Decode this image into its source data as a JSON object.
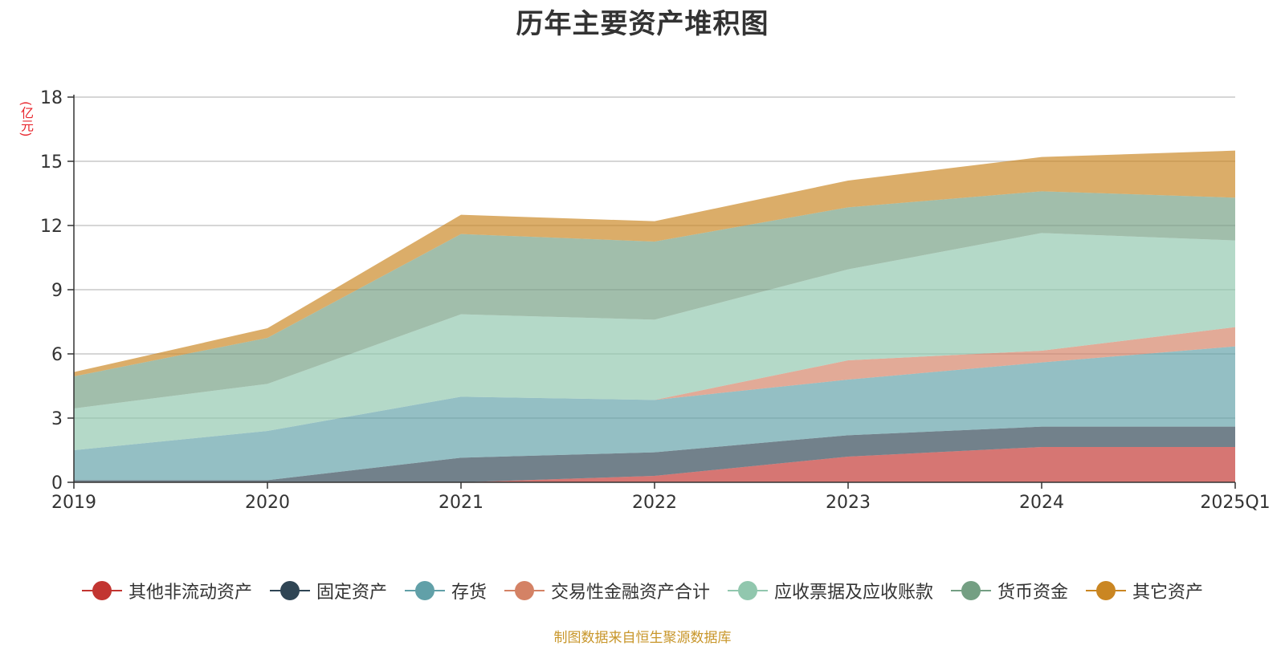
{
  "chart_data": {
    "type": "area",
    "stacked": true,
    "title": "历年主要资产堆积图",
    "y_unit": "(亿元)",
    "categories": [
      "2019",
      "2020",
      "2021",
      "2022",
      "2023",
      "2024",
      "2025Q1"
    ],
    "ylim": [
      0,
      18
    ],
    "yticks": [
      "0",
      "3",
      "6",
      "9",
      "12",
      "15",
      "18"
    ],
    "grid": true,
    "legend_position": "bottom",
    "series": [
      {
        "name": "其他非流动资产",
        "color": "#c23531",
        "values": [
          0,
          0,
          0,
          0.3,
          1.2,
          1.65,
          1.65
        ]
      },
      {
        "name": "固定资产",
        "color": "#2f4554",
        "values": [
          0.1,
          0.1,
          1.15,
          1.1,
          1.0,
          0.95,
          0.95
        ]
      },
      {
        "name": "存货",
        "color": "#61a0a8",
        "values": [
          1.4,
          2.3,
          2.85,
          2.45,
          2.6,
          3.0,
          3.75
        ]
      },
      {
        "name": "交易性金融资产合计",
        "color": "#d48265",
        "values": [
          0,
          0,
          0,
          0,
          0.9,
          0.55,
          0.9
        ]
      },
      {
        "name": "应收票据及应收账款",
        "color": "#91c7ae",
        "values": [
          1.95,
          2.2,
          3.85,
          3.75,
          4.25,
          5.5,
          4.05
        ]
      },
      {
        "name": "货币资金",
        "color": "#749f83",
        "values": [
          1.5,
          2.15,
          3.75,
          3.65,
          2.9,
          1.95,
          2.0
        ]
      },
      {
        "name": "其它资产",
        "color": "#ca8622",
        "values": [
          0.2,
          0.45,
          0.9,
          0.95,
          1.25,
          1.6,
          2.2
        ]
      }
    ]
  },
  "source_note": "制图数据来自恒生聚源数据库"
}
